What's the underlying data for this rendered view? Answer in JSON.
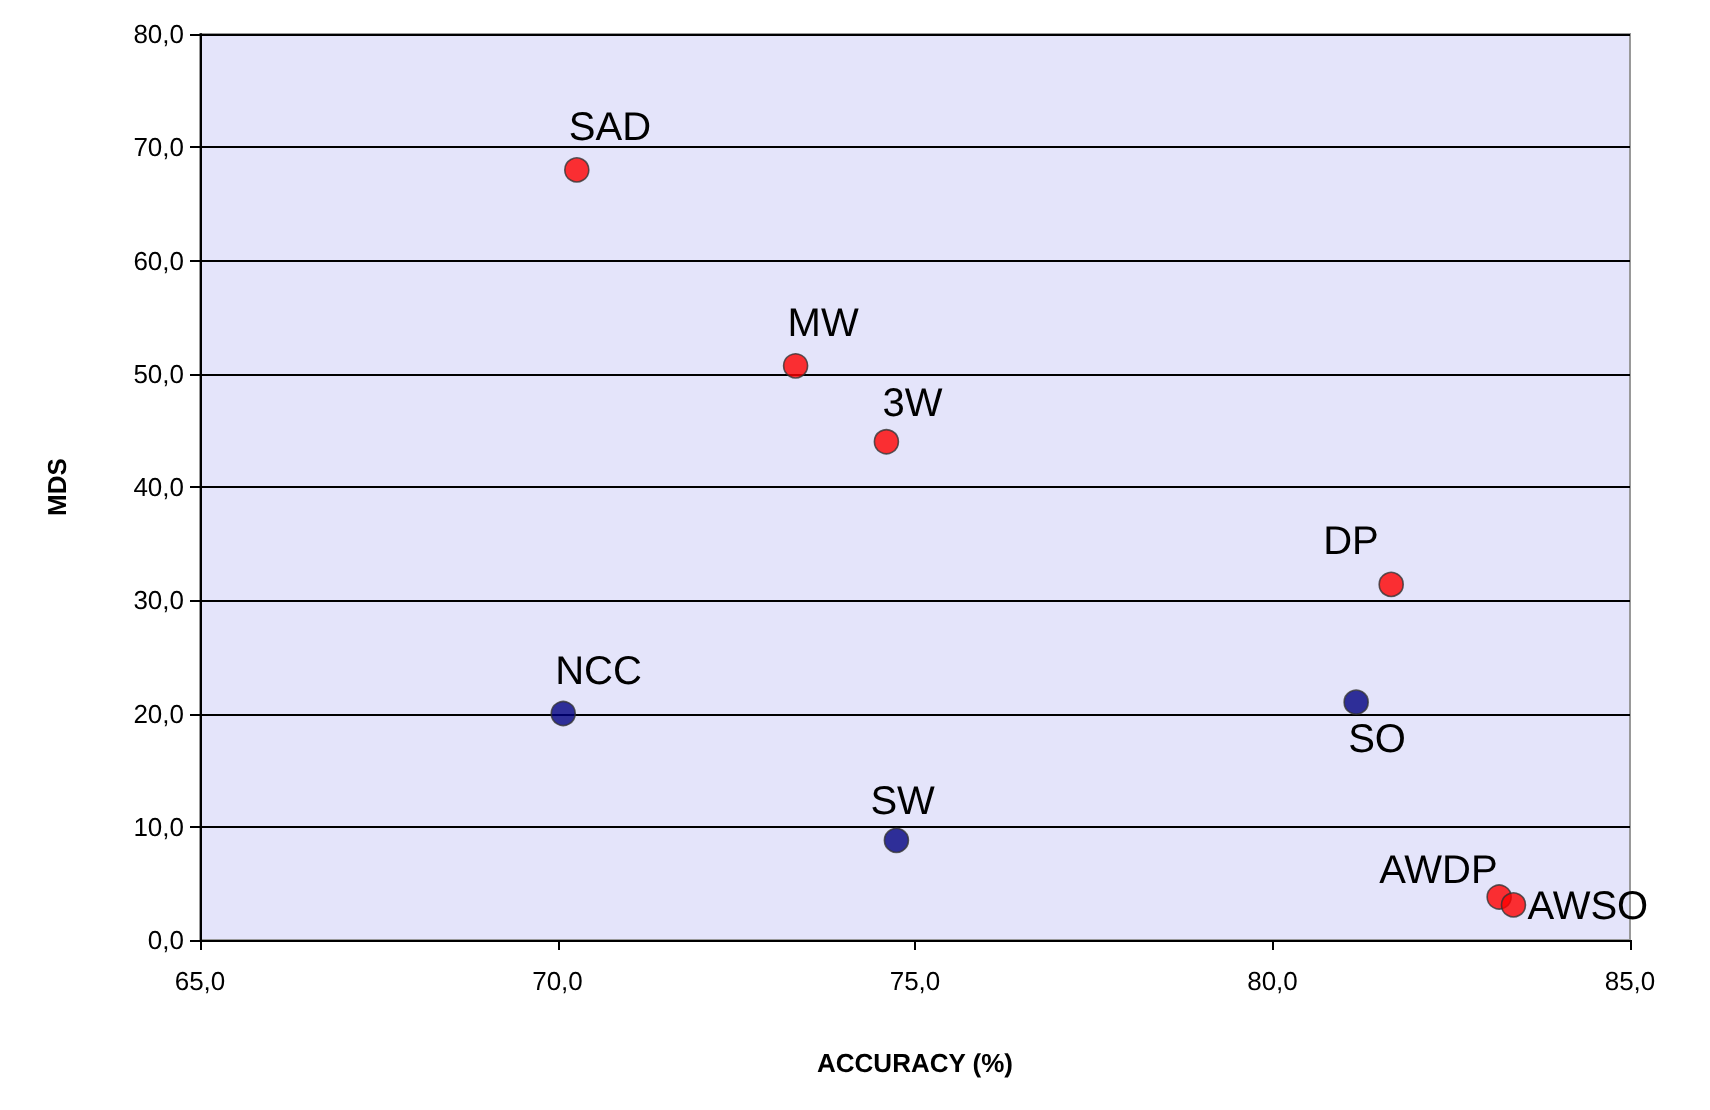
{
  "chart_data": {
    "type": "scatter",
    "xlabel": "ACCURACY (%)",
    "ylabel": "MDS",
    "series": [
      {
        "color": "#ff0000",
        "x": [
          70.27,
          73.33,
          74.6,
          81.66,
          83.17,
          83.37
        ],
        "values": [
          68.0,
          50.7,
          44.0,
          31.4,
          3.8,
          3.1
        ]
      },
      {
        "color": "#000080",
        "x": [
          70.08,
          74.74,
          81.17
        ],
        "values": [
          20.0,
          8.8,
          21.0
        ]
      }
    ],
    "annotations": [
      {
        "text": "SAD",
        "x": 70.27,
        "y": 68.0
      },
      {
        "text": "MW",
        "x": 73.33,
        "y": 50.7
      },
      {
        "text": "3W",
        "x": 74.6,
        "y": 44.0
      },
      {
        "text": "DP",
        "x": 81.66,
        "y": 31.4
      },
      {
        "text": "AWDP",
        "x": 83.17,
        "y": 3.8
      },
      {
        "text": "AWSO",
        "x": 83.37,
        "y": 3.1
      },
      {
        "text": "NCC",
        "x": 70.08,
        "y": 20.0
      },
      {
        "text": "SW",
        "x": 74.74,
        "y": 8.8
      },
      {
        "text": "SO",
        "x": 81.17,
        "y": 21.0
      }
    ],
    "xlim": [
      65,
      85
    ],
    "xticks": [
      {
        "value": 65,
        "label": "65,0"
      },
      {
        "value": 70,
        "label": "70,0"
      },
      {
        "value": 75,
        "label": "75,0"
      },
      {
        "value": 80,
        "label": "80,0"
      },
      {
        "value": 85,
        "label": "85,0"
      }
    ],
    "ylim": [
      0,
      80
    ],
    "yticks": [
      {
        "value": 0,
        "label": "0,0"
      },
      {
        "value": 10,
        "label": "10,0"
      },
      {
        "value": 20,
        "label": "20,0"
      },
      {
        "value": 30,
        "label": "30,0"
      },
      {
        "value": 40,
        "label": "40,0"
      },
      {
        "value": 50,
        "label": "50,0"
      },
      {
        "value": 60,
        "label": "60,0"
      },
      {
        "value": 70,
        "label": "70,0"
      },
      {
        "value": 80,
        "label": "80,0"
      }
    ],
    "grid": "y",
    "marker": "circle"
  }
}
